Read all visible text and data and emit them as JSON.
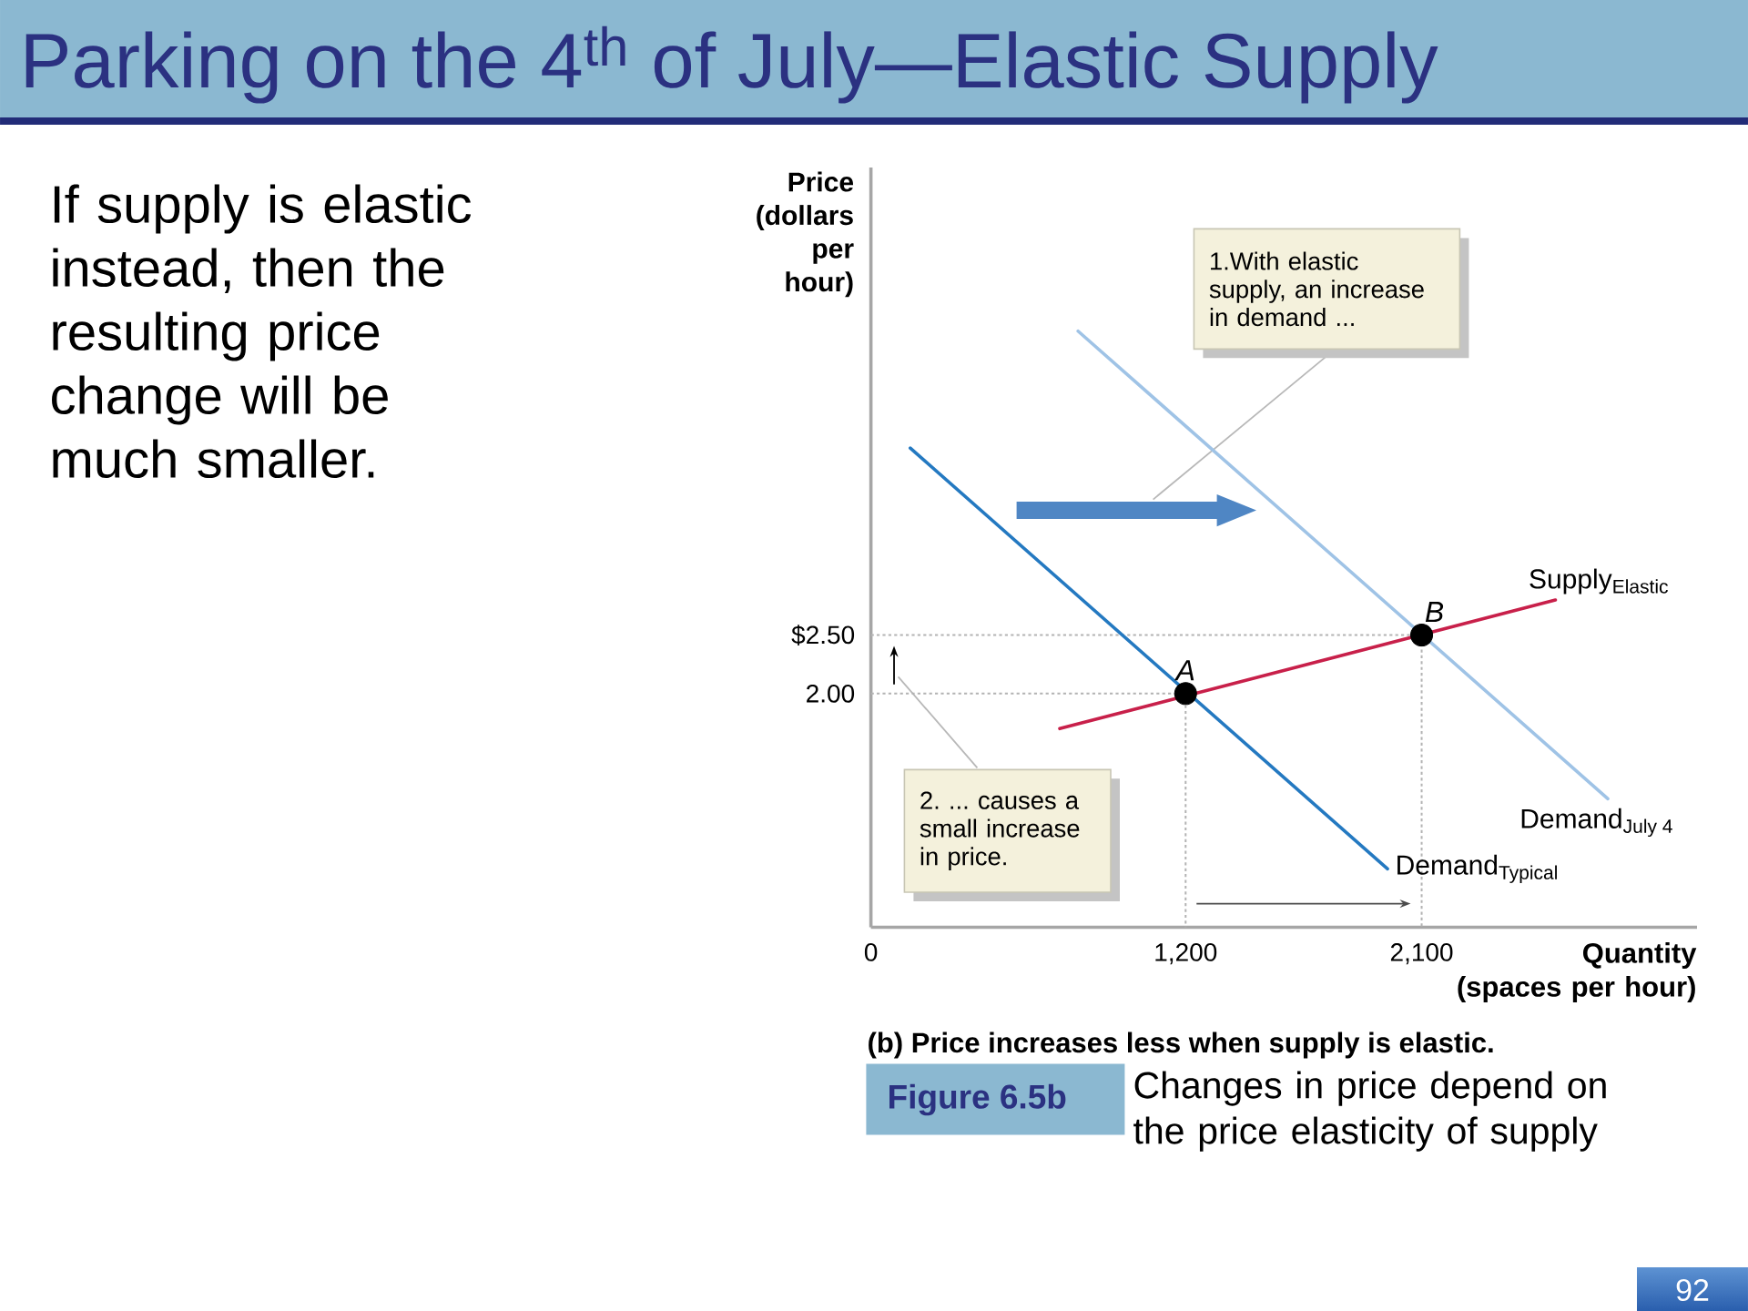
{
  "chart_data": {
    "type": "line",
    "title": "Parking on the 4$^{th}$ of July—Elastic Supply",
    "xlabel": "Quantity (spaces per hour)",
    "ylabel": "Price (dollars per hour)",
    "xlim": [
      0,
      3150
    ],
    "ylim": [
      0,
      6.5
    ],
    "xticks": [
      0,
      {
        "value": 1200,
        "label": "1,200"
      },
      {
        "value": 2100,
        "label": "2,100"
      }
    ],
    "yticks": [
      {
        "value": 2,
        "label": "2.00"
      },
      {
        "value": 2.5,
        "label": "$2.50"
      }
    ],
    "series": [
      {
        "color": "#b3b3b3",
        "line_style": "dotted",
        "x": [
          0,
          1200,
          1200
        ],
        "values": [
          2,
          2,
          0
        ]
      },
      {
        "color": "#b3b3b3",
        "line_style": "dotted",
        "x": [
          0,
          2100,
          2100
        ],
        "values": [
          2.5,
          2.5,
          0
        ]
      },
      {
        "name": "Demand$_{Typical}$",
        "color": "#2479c1",
        "x": [
          150,
          1970
        ],
        "values": [
          4.1,
          0.5
        ]
      },
      {
        "name": "Demand$_{July 4}$",
        "color": "#9fc3e6",
        "x": [
          790,
          2810
        ],
        "values": [
          5.1,
          1.1
        ]
      },
      {
        "name": "Supply$_{Elastic}$",
        "color": "#c8204a",
        "x": [
          720,
          2610
        ],
        "values": [
          1.7,
          2.8
        ]
      },
      {
        "name": "A",
        "type": "scatter",
        "color": "#000000",
        "marker": "circle",
        "x": [
          1200
        ],
        "values": [
          2
        ]
      },
      {
        "name": "B",
        "type": "scatter",
        "color": "#000000",
        "marker": "circle",
        "x": [
          2100
        ],
        "values": [
          2.5
        ]
      }
    ],
    "annotations": [
      "If supply is elastic instead, then the resulting price change will be much smaller.",
      "1.With elastic supply, an increase in demand ...",
      "2. ... causes a small increase in price.",
      "(b) Price increases less when supply is elastic.",
      "Figure 6.5b",
      "Changes in price depend on the price elasticity of supply",
      "92"
    ]
  }
}
